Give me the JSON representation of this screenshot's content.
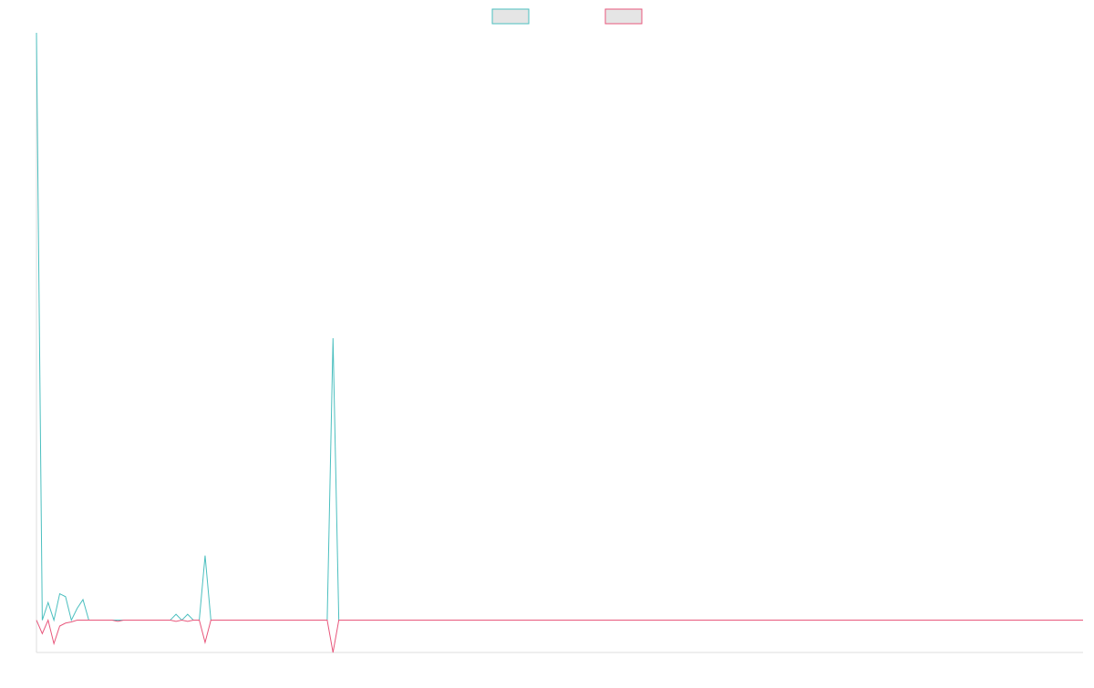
{
  "chart_data": {
    "type": "line",
    "title": "",
    "xlabel": "",
    "ylabel": "",
    "legend": {
      "position": "top-center",
      "entries": [
        {
          "swatch_fill": "#e5e5e5",
          "border": "#4bbfbf"
        },
        {
          "swatch_fill": "#e5e5e5",
          "border": "#e8577c"
        }
      ]
    },
    "grid": false,
    "x": [
      0,
      1,
      2,
      3,
      4,
      5,
      6,
      7,
      8,
      9,
      10,
      11,
      12,
      13,
      14,
      15,
      16,
      17,
      18,
      19,
      20,
      21,
      22,
      23,
      24,
      25,
      26,
      27,
      28,
      29,
      30,
      31,
      32,
      33,
      34,
      35,
      36,
      37,
      38,
      39,
      40,
      41,
      42,
      43,
      44,
      45,
      46,
      47,
      48,
      49,
      50,
      51,
      52,
      53,
      54,
      55,
      56,
      57,
      58,
      59,
      60,
      61,
      62,
      63,
      64,
      65,
      66,
      67,
      68,
      69,
      70,
      71,
      72,
      73,
      74,
      75,
      76,
      77,
      78,
      79,
      80,
      81,
      82,
      83,
      84,
      85,
      86,
      87,
      88,
      89,
      90,
      91,
      92,
      93,
      94,
      95,
      96,
      97,
      98,
      99,
      100,
      101,
      102,
      103,
      104,
      105,
      106,
      107,
      108,
      109,
      110,
      111,
      112,
      113,
      114,
      115,
      116,
      117,
      118,
      119,
      120,
      121,
      122,
      123,
      124,
      125,
      126,
      127,
      128,
      129,
      130,
      131,
      132,
      133,
      134,
      135,
      136,
      137,
      138,
      139,
      140,
      141,
      142,
      143,
      144,
      145,
      146,
      147,
      148,
      149,
      150,
      151,
      152,
      153,
      154,
      155,
      156,
      157,
      158,
      159,
      160,
      161,
      162,
      163,
      164,
      165,
      166,
      167,
      168,
      169,
      170,
      171,
      172,
      173,
      174,
      175,
      176,
      177,
      178,
      179,
      180
    ],
    "xlim": [
      0,
      180
    ],
    "ylim": [
      -5.5,
      100
    ],
    "series": [
      {
        "color": "#4bbfbf",
        "values": [
          100,
          0,
          3,
          0,
          4.5,
          4,
          0,
          2,
          3.5,
          0,
          0,
          0,
          0,
          0,
          0,
          0,
          0,
          0,
          0,
          0,
          0,
          0,
          0,
          0,
          1,
          0,
          1,
          0,
          0,
          11,
          0,
          0,
          0,
          0,
          0,
          0,
          0,
          0,
          0,
          0,
          0,
          0,
          0,
          0,
          0,
          0,
          0,
          0,
          0,
          0,
          0,
          48,
          0,
          0,
          0,
          0,
          0,
          0,
          0,
          0,
          0,
          0,
          0,
          0,
          0,
          0,
          0,
          0,
          0,
          0,
          0,
          0,
          0,
          0,
          0,
          0,
          0,
          0,
          0,
          0,
          0,
          0,
          0,
          0,
          0,
          0,
          0,
          0,
          0,
          0,
          0,
          0,
          0,
          0,
          0,
          0,
          0,
          0,
          0,
          0,
          0,
          0,
          0,
          0,
          0,
          0,
          0,
          0,
          0,
          0,
          0,
          0,
          0,
          0,
          0,
          0,
          0,
          0,
          0,
          0,
          0,
          0,
          0,
          0,
          0,
          0,
          0,
          0,
          0,
          0,
          0,
          0,
          0,
          0,
          0,
          0,
          0,
          0,
          0,
          0,
          0,
          0,
          0,
          0,
          0,
          0,
          0,
          0,
          0,
          0,
          0,
          0,
          0,
          0,
          0,
          0,
          0,
          0,
          0,
          0,
          0,
          0,
          0,
          0,
          0,
          0,
          0,
          0,
          0,
          0,
          0,
          0,
          0,
          0,
          0,
          0,
          0,
          0,
          0,
          0,
          0
        ]
      },
      {
        "color": "#e8577c",
        "values": [
          0,
          -2.3,
          0,
          -4,
          -1,
          -0.5,
          -0.3,
          0,
          0,
          0,
          0,
          0,
          0,
          0,
          -0.2,
          0,
          0,
          0,
          0,
          0,
          0,
          0,
          0,
          0,
          -0.2,
          0,
          -0.2,
          0,
          0,
          -3.8,
          0,
          0,
          0,
          0,
          0,
          0,
          0,
          0,
          0,
          0,
          0,
          0,
          0,
          0,
          0,
          0,
          0,
          0,
          0,
          0,
          0,
          -5.5,
          0,
          0,
          0,
          0,
          0,
          0,
          0,
          0,
          0,
          0,
          0,
          0,
          0,
          0,
          0,
          0,
          0,
          0,
          0,
          0,
          0,
          0,
          0,
          0,
          0,
          0,
          0,
          0,
          0,
          0,
          0,
          0,
          0,
          0,
          0,
          0,
          0,
          0,
          0,
          0,
          0,
          0,
          0,
          0,
          0,
          0,
          0,
          0,
          0,
          0,
          0,
          0,
          0,
          0,
          0,
          0,
          0,
          0,
          0,
          0,
          0,
          0,
          0,
          0,
          0,
          0,
          0,
          0,
          0,
          0,
          0,
          0,
          0,
          0,
          0,
          0,
          0,
          0,
          0,
          0,
          0,
          0,
          0,
          0,
          0,
          0,
          0,
          0,
          0,
          0,
          0,
          0,
          0,
          0,
          0,
          0,
          0,
          0,
          0,
          0,
          0,
          0,
          0,
          0,
          0,
          0,
          0,
          0,
          0,
          0,
          0,
          0,
          0,
          0,
          0,
          0,
          0,
          0,
          0,
          0,
          0,
          0,
          0,
          0,
          0,
          0,
          0,
          0,
          0
        ]
      }
    ]
  }
}
